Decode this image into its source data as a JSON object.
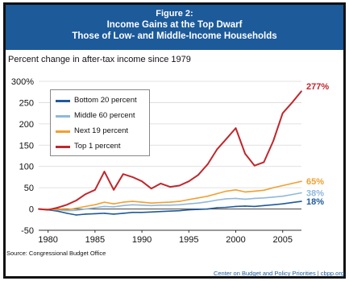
{
  "header": {
    "figure_label": "Figure 2:",
    "title_line1": "Income Gains at the Top Dwarf",
    "title_line2": "Those of Low- and Middle-Income Households"
  },
  "subtitle": "Percent change in after-tax income since 1979",
  "source": "Source: Congressional Budget Office",
  "credit": "Center on Budget and Policy Priorities | cbpp.org",
  "colors": {
    "header_bg": "#1c5a9a",
    "bottom20": "#1f5a9a",
    "middle60": "#8fb8dc",
    "next19": "#f0a030",
    "top1": "#c0272d"
  },
  "chart_data": {
    "type": "line",
    "title": "Income Gains at the Top Dwarf Those of Low- and Middle-Income Households",
    "ylabel": "Percent change in after-tax income since 1979",
    "xlabel": "",
    "xlim": [
      1979,
      2007
    ],
    "ylim": [
      -50,
      300
    ],
    "x_ticks": [
      "1980",
      "1985",
      "1990",
      "1995",
      "2000",
      "2005"
    ],
    "x_tick_values": [
      1980,
      1985,
      1990,
      1995,
      2000,
      2005
    ],
    "y_ticks": [
      "-50",
      "0",
      "50",
      "100",
      "150",
      "200",
      "250",
      "300%"
    ],
    "y_tick_values": [
      -50,
      0,
      50,
      100,
      150,
      200,
      250,
      300
    ],
    "grid": "horizontal",
    "legend_position": "upper-left",
    "x": [
      1979,
      1980,
      1981,
      1982,
      1983,
      1984,
      1985,
      1986,
      1987,
      1988,
      1989,
      1990,
      1991,
      1992,
      1993,
      1994,
      1995,
      1996,
      1997,
      1998,
      1999,
      2000,
      2001,
      2002,
      2003,
      2004,
      2005,
      2006,
      2007
    ],
    "series": [
      {
        "name": "Bottom 20 percent",
        "color_key": "bottom20",
        "values": [
          0,
          -2,
          -5,
          -10,
          -14,
          -12,
          -11,
          -10,
          -12,
          -10,
          -8,
          -8,
          -7,
          -6,
          -5,
          -4,
          -2,
          -1,
          0,
          3,
          4,
          6,
          7,
          6,
          8,
          10,
          12,
          15,
          18
        ],
        "end_label": "18%"
      },
      {
        "name": "Middle 60 percent",
        "color_key": "middle60",
        "values": [
          0,
          -1,
          -2,
          -4,
          -3,
          0,
          3,
          6,
          5,
          8,
          10,
          9,
          8,
          9,
          9,
          10,
          12,
          14,
          17,
          21,
          24,
          25,
          23,
          25,
          26,
          28,
          30,
          34,
          38
        ],
        "end_label": "38%"
      },
      {
        "name": "Next 19 percent",
        "color_key": "next19",
        "values": [
          0,
          -1,
          -1,
          -2,
          2,
          6,
          10,
          16,
          12,
          16,
          18,
          16,
          14,
          15,
          16,
          18,
          22,
          26,
          30,
          36,
          42,
          45,
          40,
          42,
          44,
          50,
          55,
          60,
          65
        ],
        "end_label": "65%"
      },
      {
        "name": "Top 1 percent",
        "color_key": "top1",
        "values": [
          0,
          -2,
          3,
          10,
          20,
          35,
          45,
          88,
          45,
          82,
          75,
          65,
          48,
          60,
          52,
          55,
          65,
          80,
          105,
          140,
          165,
          190,
          130,
          102,
          110,
          160,
          225,
          250,
          277
        ],
        "end_label": "277%"
      }
    ]
  }
}
